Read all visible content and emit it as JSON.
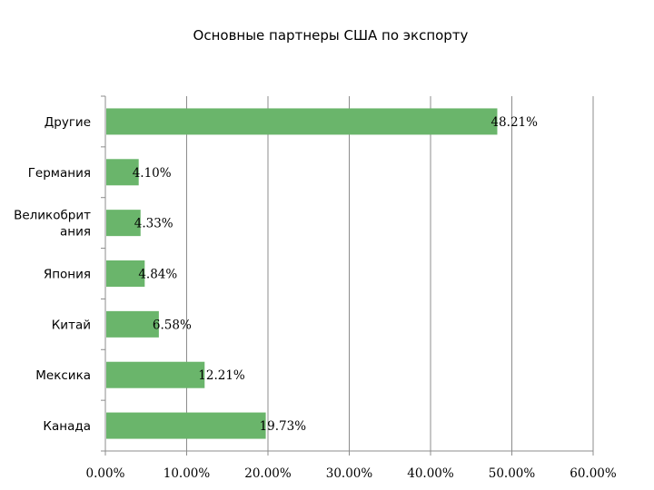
{
  "chart_data": {
    "type": "bar",
    "orientation": "horizontal",
    "title": "Основные партнеры США по экспорту",
    "categories": [
      "Другие",
      "Германия",
      "Великобритания",
      "Япония",
      "Китай",
      "Мексика",
      "Канада"
    ],
    "category_label_lines": [
      [
        "Другие"
      ],
      [
        "Германия"
      ],
      [
        "Великобрит",
        "ания"
      ],
      [
        "Япония"
      ],
      [
        "Китай"
      ],
      [
        "Мексика"
      ],
      [
        "Канада"
      ]
    ],
    "values": [
      48.21,
      4.1,
      4.33,
      4.84,
      6.58,
      12.21,
      19.73
    ],
    "value_labels": [
      "48.21%",
      "4.10%",
      "4.33%",
      "4.84%",
      "6.58%",
      "12.21%",
      "19.73%"
    ],
    "xlim": [
      0,
      60
    ],
    "x_ticks": [
      0,
      10,
      20,
      30,
      40,
      50,
      60
    ],
    "x_tick_labels": [
      "0.00%",
      "10.00%",
      "20.00%",
      "30.00%",
      "40.00%",
      "50.00%",
      "60.00%"
    ],
    "grid": true,
    "legend": "none",
    "bar_color": "#6ab56b",
    "grid_color": "#8c8c8c"
  }
}
